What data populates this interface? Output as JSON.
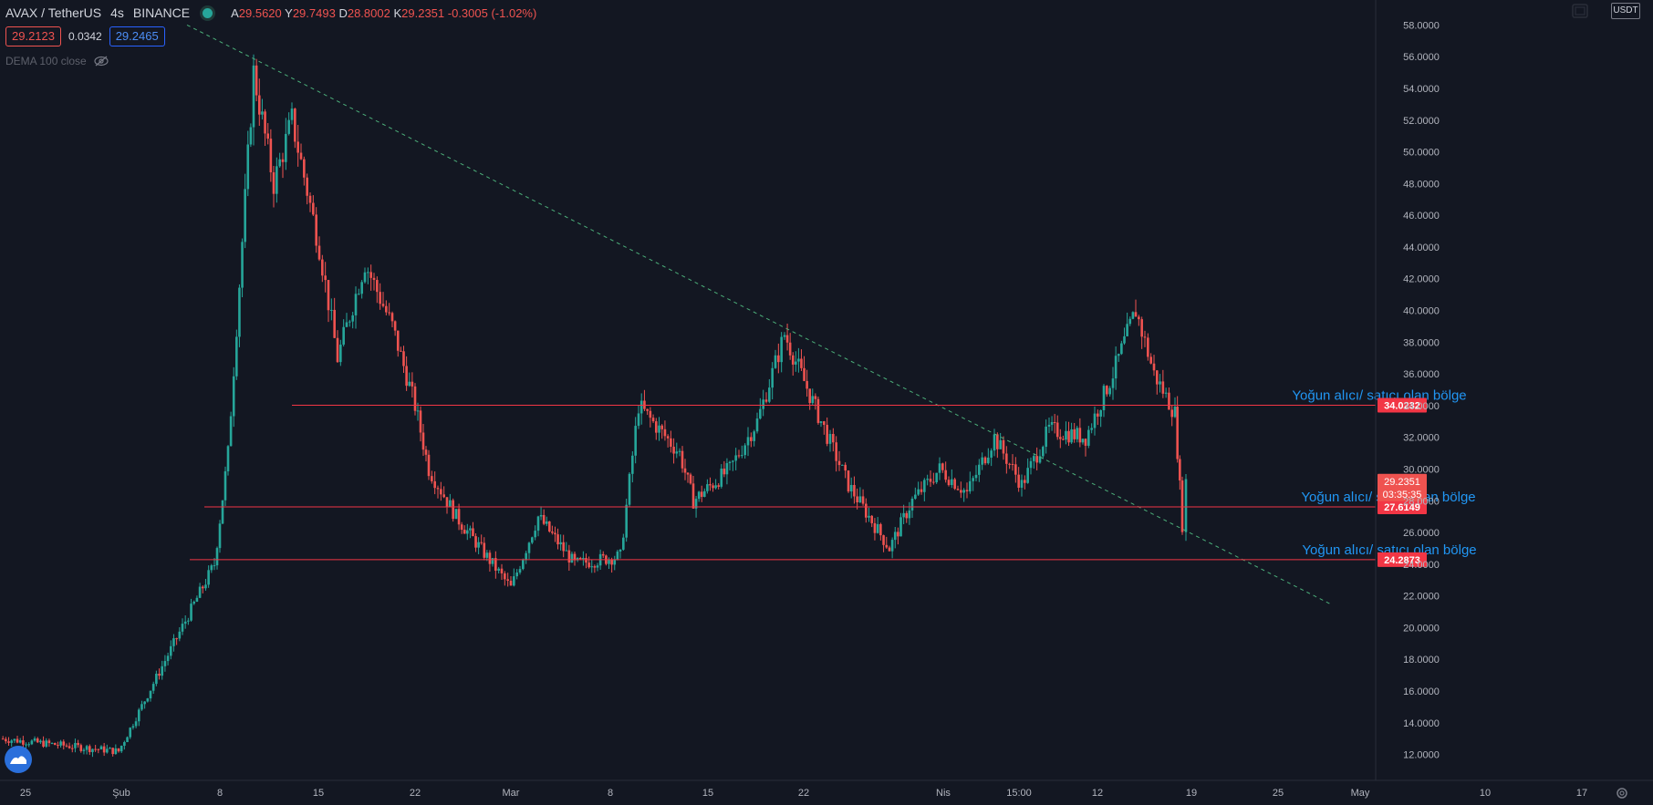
{
  "header": {
    "symbol": "AVAX / TetherUS",
    "interval": "4s",
    "exchange": "BINANCE",
    "ohlc": {
      "open_key": "A",
      "open": "29.5620",
      "high_key": "Y",
      "high": "29.7493",
      "low_key": "D",
      "low": "28.8002",
      "close_key": "K",
      "close": "29.2351",
      "change": "-0.3005 (-1.02%)"
    }
  },
  "quotes": {
    "bid": "29.2123",
    "spread": "0.0342",
    "ask": "29.2465"
  },
  "indicator": {
    "label": "DEMA 100 close"
  },
  "currency": "USDT",
  "colors": {
    "background": "#131722",
    "up": "#26a69a",
    "down": "#ef5350",
    "level_line": "#f23645",
    "trend_line": "#4caf7a",
    "annotation": "#2196f3"
  },
  "chart_data": {
    "type": "candlestick",
    "ylim": [
      11,
      59
    ],
    "y_ticks": [
      "12.0000",
      "14.0000",
      "16.0000",
      "18.0000",
      "20.0000",
      "22.0000",
      "24.0000",
      "26.0000",
      "28.0000",
      "30.0000",
      "32.0000",
      "34.0000",
      "36.0000",
      "38.0000",
      "40.0000",
      "42.0000",
      "44.0000",
      "46.0000",
      "48.0000",
      "50.0000",
      "52.0000",
      "54.0000",
      "56.0000",
      "58.0000"
    ],
    "x_ticks": [
      "25",
      "Şub",
      "8",
      "15",
      "22",
      "Mar",
      "8",
      "15",
      "22",
      "Nis",
      "15:00",
      "12",
      "19",
      "25",
      "May",
      "10",
      "17"
    ],
    "price_path": [
      [
        "25",
        13.0
      ],
      [
        "Şub",
        12.2
      ],
      [
        "8",
        24.0
      ],
      [
        "9",
        31.0
      ],
      [
        "10",
        55.0
      ],
      [
        "11",
        48.0
      ],
      [
        "12",
        52.0
      ],
      [
        "15",
        44.0
      ],
      [
        "16",
        37.0
      ],
      [
        "18",
        43.0
      ],
      [
        "21",
        39.0
      ],
      [
        "22",
        34.0
      ],
      [
        "23",
        30.0
      ],
      [
        "25",
        27.0
      ],
      [
        "28",
        24.0
      ],
      [
        "Mar",
        22.5
      ],
      [
        "2",
        27.0
      ],
      [
        "5",
        24.0
      ],
      [
        "8",
        24.5
      ],
      [
        "9",
        34.0
      ],
      [
        "11",
        31.0
      ],
      [
        "13",
        28.0
      ],
      [
        "15",
        30.0
      ],
      [
        "18",
        33.0
      ],
      [
        "20",
        38.5
      ],
      [
        "22",
        33.0
      ],
      [
        "24",
        29.0
      ],
      [
        "26",
        25.0
      ],
      [
        "28",
        28.0
      ],
      [
        "31",
        30.0
      ],
      [
        "Nis",
        28.5
      ],
      [
        "15:00",
        32.0
      ],
      [
        "8",
        29.0
      ],
      [
        "12",
        32.5
      ],
      [
        "14",
        32.0
      ],
      [
        "16",
        36.0
      ],
      [
        "17",
        40.0
      ],
      [
        "18",
        36.0
      ],
      [
        "19",
        33.5
      ],
      [
        "19b",
        26.5
      ],
      [
        "19c",
        29.2
      ]
    ],
    "horizontal_levels": [
      {
        "value": 34.0232,
        "label": "34.0232",
        "annotation": "Yoğun alıcı/ satıcı olan bölge"
      },
      {
        "value": 27.6149,
        "label": "27.6149",
        "annotation": "Yoğun alıcı/ satıcı olan bölge"
      },
      {
        "value": 24.2873,
        "label": "24.2873",
        "annotation": "Yoğun alıcı/ satıcı olan bölge"
      }
    ],
    "trend_line": {
      "from": [
        "2021-02-06",
        58.0
      ],
      "to": [
        "2021-04-26",
        21.5
      ],
      "style": "dashed"
    },
    "last_price": {
      "value": 29.2351,
      "label": "29.2351",
      "countdown": "03:35:35"
    }
  }
}
